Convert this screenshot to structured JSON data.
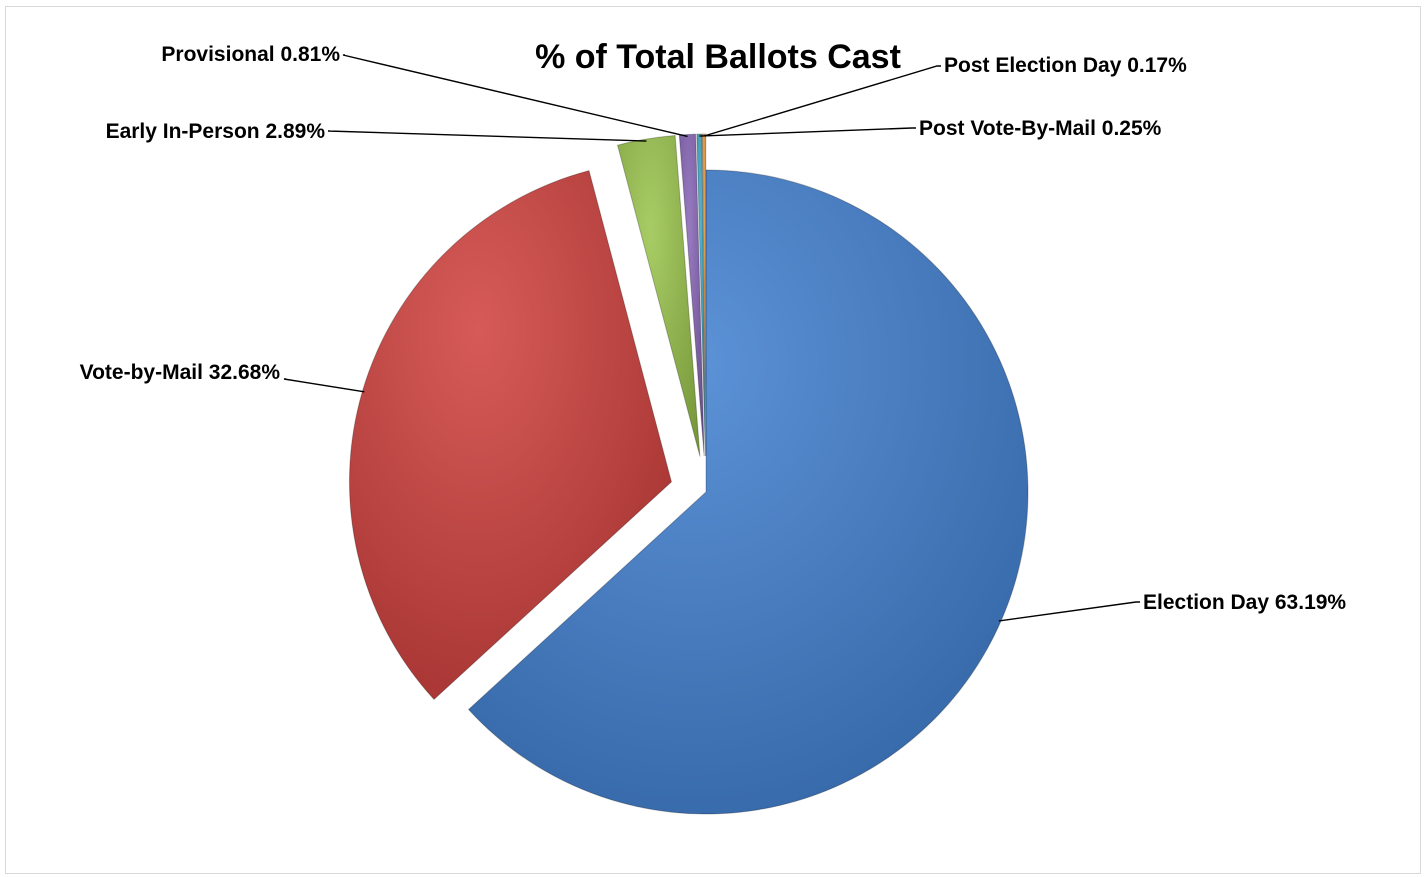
{
  "chart_data": {
    "type": "pie",
    "title": "% of Total Ballots Cast",
    "unit": "%",
    "slices": [
      {
        "label": "Election Day",
        "value": 63.19,
        "display": "Election Day 63.19%",
        "color": "#3f7fd0",
        "exploded": false
      },
      {
        "label": "Vote-by-Mail",
        "value": 32.68,
        "display": "Vote-by-Mail 32.68%",
        "color": "#cf3e3b",
        "exploded": true
      },
      {
        "label": "Early In-Person",
        "value": 2.89,
        "display": "Early In-Person 2.89%",
        "color": "#99c34a",
        "exploded": true
      },
      {
        "label": "Provisional",
        "value": 0.81,
        "display": "Provisional 0.81%",
        "color": "#8563b5",
        "exploded": true
      },
      {
        "label": "Post Vote-By-Mail",
        "value": 0.25,
        "display": "Post Vote-By-Mail 0.25%",
        "color": "#3aa7c4",
        "exploded": true
      },
      {
        "label": "Post Election Day",
        "value": 0.17,
        "display": "Post Election Day 0.17%",
        "color": "#f39c3a",
        "exploded": true
      }
    ],
    "legend": "none",
    "data_labels": "outside-with-leader-lines"
  }
}
